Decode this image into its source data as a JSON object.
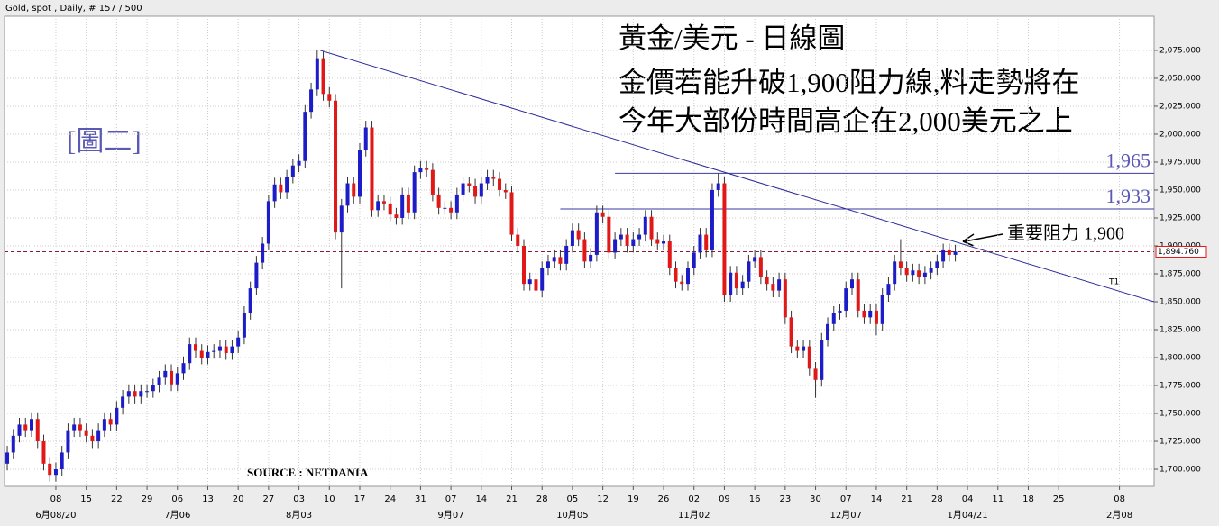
{
  "chart_data": {
    "type": "candlestick",
    "header": "Gold, spot , Daily, # 157 / 500",
    "annotation_lines": [
      "黃金/美元 - 日線圖",
      "金價若能升破1,900阻力線,料走勢將在",
      "今年大部份時間高企在2,000美元之上"
    ],
    "figure_label": "[圖二]",
    "source": "SOURCE : NETDANIA",
    "resistance_note": "重要阻力 1,900",
    "up_color": "#1c1cc8",
    "down_color": "#e01818",
    "grid": true,
    "xlim": [
      -0.45,
      188.7
    ],
    "ylim": [
      1684.7,
      2105.6
    ],
    "x": [
      0,
      1,
      2,
      3,
      4,
      5,
      6,
      7,
      8,
      9,
      10,
      11,
      12,
      13,
      14,
      15,
      16,
      17,
      18,
      19,
      20,
      21,
      22,
      23,
      24,
      25,
      26,
      27,
      28,
      29,
      30,
      31,
      32,
      33,
      34,
      35,
      36,
      37,
      38,
      39,
      40,
      41,
      42,
      43,
      44,
      45,
      46,
      47,
      48,
      49,
      50,
      51,
      52,
      53,
      54,
      55,
      56,
      57,
      58,
      59,
      60,
      61,
      62,
      63,
      64,
      65,
      66,
      67,
      68,
      69,
      70,
      71,
      72,
      73,
      74,
      75,
      76,
      77,
      78,
      79,
      80,
      81,
      82,
      83,
      84,
      85,
      86,
      87,
      88,
      89,
      90,
      91,
      92,
      93,
      94,
      95,
      96,
      97,
      98,
      99,
      100,
      101,
      102,
      103,
      104,
      105,
      106,
      107,
      108,
      109,
      110,
      111,
      112,
      113,
      114,
      115,
      116,
      117,
      118,
      119,
      120,
      121,
      122,
      123,
      124,
      125,
      126,
      127,
      128,
      129,
      130,
      131,
      132,
      133,
      134,
      135,
      136,
      137,
      138,
      139,
      140,
      141,
      142,
      143,
      144,
      145,
      146,
      147,
      148,
      149,
      150,
      151,
      152,
      153,
      154,
      155,
      156
    ],
    "open": [
      1705,
      1715,
      1730,
      1740,
      1735,
      1745,
      1725,
      1705,
      1695,
      1700,
      1715,
      1735,
      1740,
      1735,
      1730,
      1725,
      1735,
      1745,
      1740,
      1755,
      1765,
      1770,
      1765,
      1770,
      1770,
      1775,
      1782,
      1788,
      1776,
      1786,
      1795,
      1812,
      1806,
      1800,
      1805,
      1806,
      1810,
      1804,
      1810,
      1818,
      1840,
      1862,
      1885,
      1902,
      1940,
      1955,
      1948,
      1962,
      1972,
      1976,
      2020,
      2040,
      2068,
      2036,
      2030,
      1912,
      1936,
      1956,
      1944,
      1986,
      2006,
      1932,
      1940,
      1938,
      1928,
      1925,
      1946,
      1930,
      1966,
      1970,
      1968,
      1946,
      1934,
      1934,
      1930,
      1946,
      1956,
      1954,
      1944,
      1956,
      1962,
      1960,
      1950,
      1948,
      1910,
      1900,
      1866,
      1870,
      1860,
      1880,
      1886,
      1890,
      1884,
      1900,
      1914,
      1906,
      1886,
      1892,
      1930,
      1926,
      1894,
      1906,
      1910,
      1900,
      1906,
      1910,
      1926,
      1906,
      1902,
      1904,
      1880,
      1868,
      1866,
      1880,
      1894,
      1910,
      1896,
      1950,
      1956,
      1856,
      1876,
      1862,
      1868,
      1886,
      1890,
      1872,
      1866,
      1860,
      1870,
      1836,
      1810,
      1806,
      1810,
      1790,
      1780,
      1816,
      1830,
      1840,
      1842,
      1862,
      1870,
      1842,
      1836,
      1842,
      1830,
      1856,
      1866,
      1886,
      1880,
      1874,
      1878,
      1872,
      1876,
      1880,
      1886,
      1896,
      1892
    ],
    "high": [
      1721,
      1736,
      1746,
      1746,
      1751,
      1751,
      1731,
      1711,
      1706,
      1721,
      1741,
      1746,
      1746,
      1741,
      1736,
      1741,
      1751,
      1751,
      1761,
      1771,
      1776,
      1776,
      1776,
      1776,
      1781,
      1788,
      1794,
      1794,
      1792,
      1801,
      1818,
      1818,
      1812,
      1811,
      1812,
      1816,
      1816,
      1816,
      1824,
      1846,
      1868,
      1891,
      1908,
      1946,
      1961,
      1961,
      1968,
      1978,
      1982,
      2026,
      2046,
      2075,
      2074,
      2042,
      2036,
      1942,
      1962,
      1962,
      1992,
      2012,
      2012,
      1946,
      1946,
      1944,
      1934,
      1952,
      1952,
      1972,
      1976,
      1976,
      1974,
      1952,
      1940,
      1940,
      1952,
      1962,
      1962,
      1960,
      1962,
      1968,
      1968,
      1966,
      1956,
      1954,
      1916,
      1906,
      1876,
      1876,
      1886,
      1892,
      1896,
      1896,
      1906,
      1920,
      1920,
      1912,
      1898,
      1936,
      1936,
      1932,
      1912,
      1916,
      1916,
      1912,
      1916,
      1932,
      1932,
      1912,
      1910,
      1910,
      1886,
      1874,
      1886,
      1900,
      1916,
      1916,
      1956,
      1965,
      1962,
      1882,
      1882,
      1874,
      1892,
      1896,
      1896,
      1878,
      1872,
      1876,
      1876,
      1842,
      1816,
      1816,
      1816,
      1796,
      1822,
      1836,
      1846,
      1848,
      1868,
      1876,
      1876,
      1848,
      1848,
      1848,
      1862,
      1872,
      1892,
      1906,
      1886,
      1884,
      1884,
      1882,
      1886,
      1892,
      1902,
      1902,
      1901
    ],
    "low": [
      1699,
      1709,
      1724,
      1729,
      1729,
      1719,
      1699,
      1689,
      1689,
      1694,
      1709,
      1729,
      1729,
      1724,
      1719,
      1719,
      1729,
      1734,
      1734,
      1749,
      1759,
      1759,
      1759,
      1764,
      1764,
      1769,
      1776,
      1770,
      1770,
      1780,
      1789,
      1800,
      1794,
      1794,
      1799,
      1800,
      1798,
      1798,
      1804,
      1812,
      1834,
      1856,
      1879,
      1896,
      1934,
      1942,
      1942,
      1956,
      1966,
      1970,
      2014,
      2034,
      2030,
      2024,
      1906,
      1862,
      1930,
      1938,
      1938,
      1980,
      1926,
      1926,
      1932,
      1922,
      1919,
      1919,
      1924,
      1924,
      1960,
      1962,
      1940,
      1928,
      1928,
      1924,
      1924,
      1940,
      1948,
      1938,
      1938,
      1950,
      1954,
      1944,
      1942,
      1904,
      1894,
      1860,
      1860,
      1854,
      1854,
      1874,
      1880,
      1878,
      1878,
      1894,
      1900,
      1880,
      1880,
      1886,
      1920,
      1888,
      1888,
      1900,
      1894,
      1894,
      1900,
      1904,
      1900,
      1896,
      1896,
      1874,
      1862,
      1860,
      1860,
      1874,
      1888,
      1890,
      1890,
      1944,
      1850,
      1850,
      1856,
      1856,
      1862,
      1880,
      1866,
      1860,
      1854,
      1854,
      1830,
      1804,
      1800,
      1800,
      1784,
      1764,
      1774,
      1810,
      1824,
      1834,
      1836,
      1856,
      1836,
      1830,
      1830,
      1820,
      1824,
      1850,
      1860,
      1874,
      1868,
      1868,
      1866,
      1866,
      1870,
      1874,
      1880,
      1886,
      1886
    ],
    "close": [
      1715,
      1730,
      1740,
      1735,
      1745,
      1725,
      1705,
      1695,
      1700,
      1715,
      1735,
      1740,
      1735,
      1730,
      1725,
      1735,
      1745,
      1740,
      1755,
      1765,
      1770,
      1765,
      1770,
      1770,
      1775,
      1782,
      1788,
      1776,
      1786,
      1795,
      1812,
      1806,
      1800,
      1805,
      1806,
      1810,
      1804,
      1810,
      1818,
      1840,
      1862,
      1885,
      1902,
      1940,
      1955,
      1948,
      1962,
      1972,
      1976,
      2020,
      2040,
      2068,
      2036,
      2030,
      1912,
      1936,
      1956,
      1944,
      1986,
      2006,
      1932,
      1940,
      1938,
      1928,
      1925,
      1946,
      1930,
      1966,
      1970,
      1968,
      1946,
      1934,
      1934,
      1930,
      1946,
      1956,
      1954,
      1944,
      1956,
      1962,
      1960,
      1950,
      1948,
      1910,
      1900,
      1866,
      1870,
      1860,
      1880,
      1886,
      1890,
      1884,
      1900,
      1914,
      1906,
      1886,
      1892,
      1930,
      1926,
      1894,
      1906,
      1910,
      1900,
      1906,
      1910,
      1926,
      1906,
      1902,
      1904,
      1880,
      1868,
      1866,
      1880,
      1894,
      1910,
      1896,
      1950,
      1956,
      1856,
      1876,
      1862,
      1868,
      1886,
      1890,
      1872,
      1866,
      1860,
      1870,
      1836,
      1810,
      1806,
      1810,
      1790,
      1780,
      1816,
      1830,
      1840,
      1842,
      1862,
      1870,
      1842,
      1836,
      1842,
      1830,
      1856,
      1866,
      1886,
      1880,
      1874,
      1878,
      1872,
      1876,
      1880,
      1886,
      1896,
      1892,
      1894.76
    ],
    "last_price": {
      "value": 1894.76,
      "label": "1,894.760"
    },
    "trendline": {
      "label": "T1",
      "x": [
        51.5,
        188.7
      ],
      "values": [
        2075,
        1850
      ]
    },
    "levels": [
      {
        "value": 1965,
        "label": "1,965",
        "x_start": 100
      },
      {
        "value": 1933,
        "label": "1,933",
        "x_start": 91
      }
    ],
    "yticks": [
      {
        "value": 1700,
        "label": "1,700.000"
      },
      {
        "value": 1725,
        "label": "1,725.000"
      },
      {
        "value": 1750,
        "label": "1,750.000"
      },
      {
        "value": 1775,
        "label": "1,775.000"
      },
      {
        "value": 1800,
        "label": "1,800.000"
      },
      {
        "value": 1825,
        "label": "1,825.000"
      },
      {
        "value": 1850,
        "label": "1,850.000"
      },
      {
        "value": 1875,
        "label": "1,875.000"
      },
      {
        "value": 1900,
        "label": "1,900.000"
      },
      {
        "value": 1925,
        "label": "1,925.000"
      },
      {
        "value": 1950,
        "label": "1,950.000"
      },
      {
        "value": 1975,
        "label": "1,975.000"
      },
      {
        "value": 2000,
        "label": "2,000.000"
      },
      {
        "value": 2025,
        "label": "2,025.000"
      },
      {
        "value": 2050,
        "label": "2,050.000"
      },
      {
        "value": 2075,
        "label": "2,075.000"
      }
    ],
    "xticks": [
      {
        "value": 8,
        "label": "08"
      },
      {
        "value": 13,
        "label": "15"
      },
      {
        "value": 18,
        "label": "22"
      },
      {
        "value": 23,
        "label": "29"
      },
      {
        "value": 28,
        "label": "06"
      },
      {
        "value": 33,
        "label": "13"
      },
      {
        "value": 38,
        "label": "20"
      },
      {
        "value": 43,
        "label": "27"
      },
      {
        "value": 48,
        "label": "03"
      },
      {
        "value": 53,
        "label": "10"
      },
      {
        "value": 58,
        "label": "17"
      },
      {
        "value": 63,
        "label": "24"
      },
      {
        "value": 68,
        "label": "31"
      },
      {
        "value": 73,
        "label": "07"
      },
      {
        "value": 78,
        "label": "14"
      },
      {
        "value": 83,
        "label": "21"
      },
      {
        "value": 88,
        "label": "28"
      },
      {
        "value": 93,
        "label": "05"
      },
      {
        "value": 98,
        "label": "12"
      },
      {
        "value": 103,
        "label": "19"
      },
      {
        "value": 108,
        "label": "26"
      },
      {
        "value": 113,
        "label": "02"
      },
      {
        "value": 118,
        "label": "09"
      },
      {
        "value": 123,
        "label": "16"
      },
      {
        "value": 128,
        "label": "23"
      },
      {
        "value": 133,
        "label": "30"
      },
      {
        "value": 138,
        "label": "07"
      },
      {
        "value": 143,
        "label": "14"
      },
      {
        "value": 148,
        "label": "21"
      },
      {
        "value": 153,
        "label": "28"
      },
      {
        "value": 158,
        "label": "04"
      },
      {
        "value": 163,
        "label": "11"
      },
      {
        "value": 168,
        "label": "18"
      },
      {
        "value": 173,
        "label": "25"
      },
      {
        "value": 183,
        "label": "08"
      }
    ],
    "month_labels": [
      {
        "value": 8,
        "label": "6月08/20"
      },
      {
        "value": 28,
        "label": "7月06"
      },
      {
        "value": 48,
        "label": "8月03"
      },
      {
        "value": 73,
        "label": "9月07"
      },
      {
        "value": 93,
        "label": "10月05"
      },
      {
        "value": 113,
        "label": "11月02"
      },
      {
        "value": 138,
        "label": "12月07"
      },
      {
        "value": 158,
        "label": "1月04/21"
      },
      {
        "value": 183,
        "label": "2月08"
      }
    ]
  }
}
